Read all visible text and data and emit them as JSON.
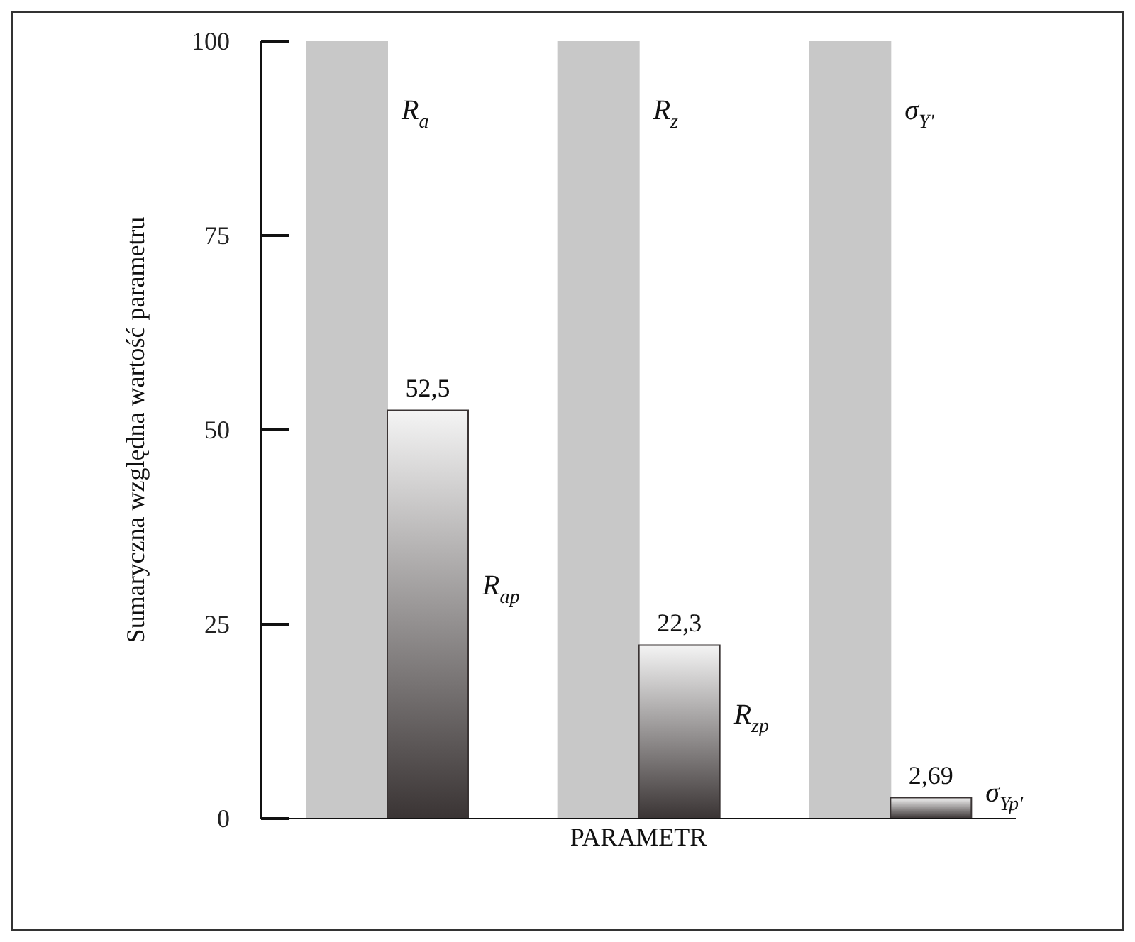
{
  "chart_data": {
    "type": "bar",
    "xlabel": "PARAMETR",
    "ylabel": "Sumaryczna względna wartość parametru",
    "categories": [
      null,
      null,
      null
    ],
    "series": [
      {
        "color": "#c8c8c8",
        "values": [
          100,
          100,
          100
        ]
      },
      {
        "color": "#3a3434",
        "values": [
          52.5,
          22.3,
          2.69
        ],
        "value_labels": [
          "52,5",
          "22,3",
          "2,69"
        ]
      }
    ],
    "annotations": [
      "R$_{a}$",
      "R$_{z}$",
      "σ$_{Y'}$",
      "R$_{ap}$",
      "R$_{zp}$",
      "σ$_{Yp'}$"
    ],
    "ylim": [
      0,
      100
    ],
    "yticks": [
      0,
      25,
      50,
      75,
      100
    ],
    "grid": false,
    "legend": false
  }
}
